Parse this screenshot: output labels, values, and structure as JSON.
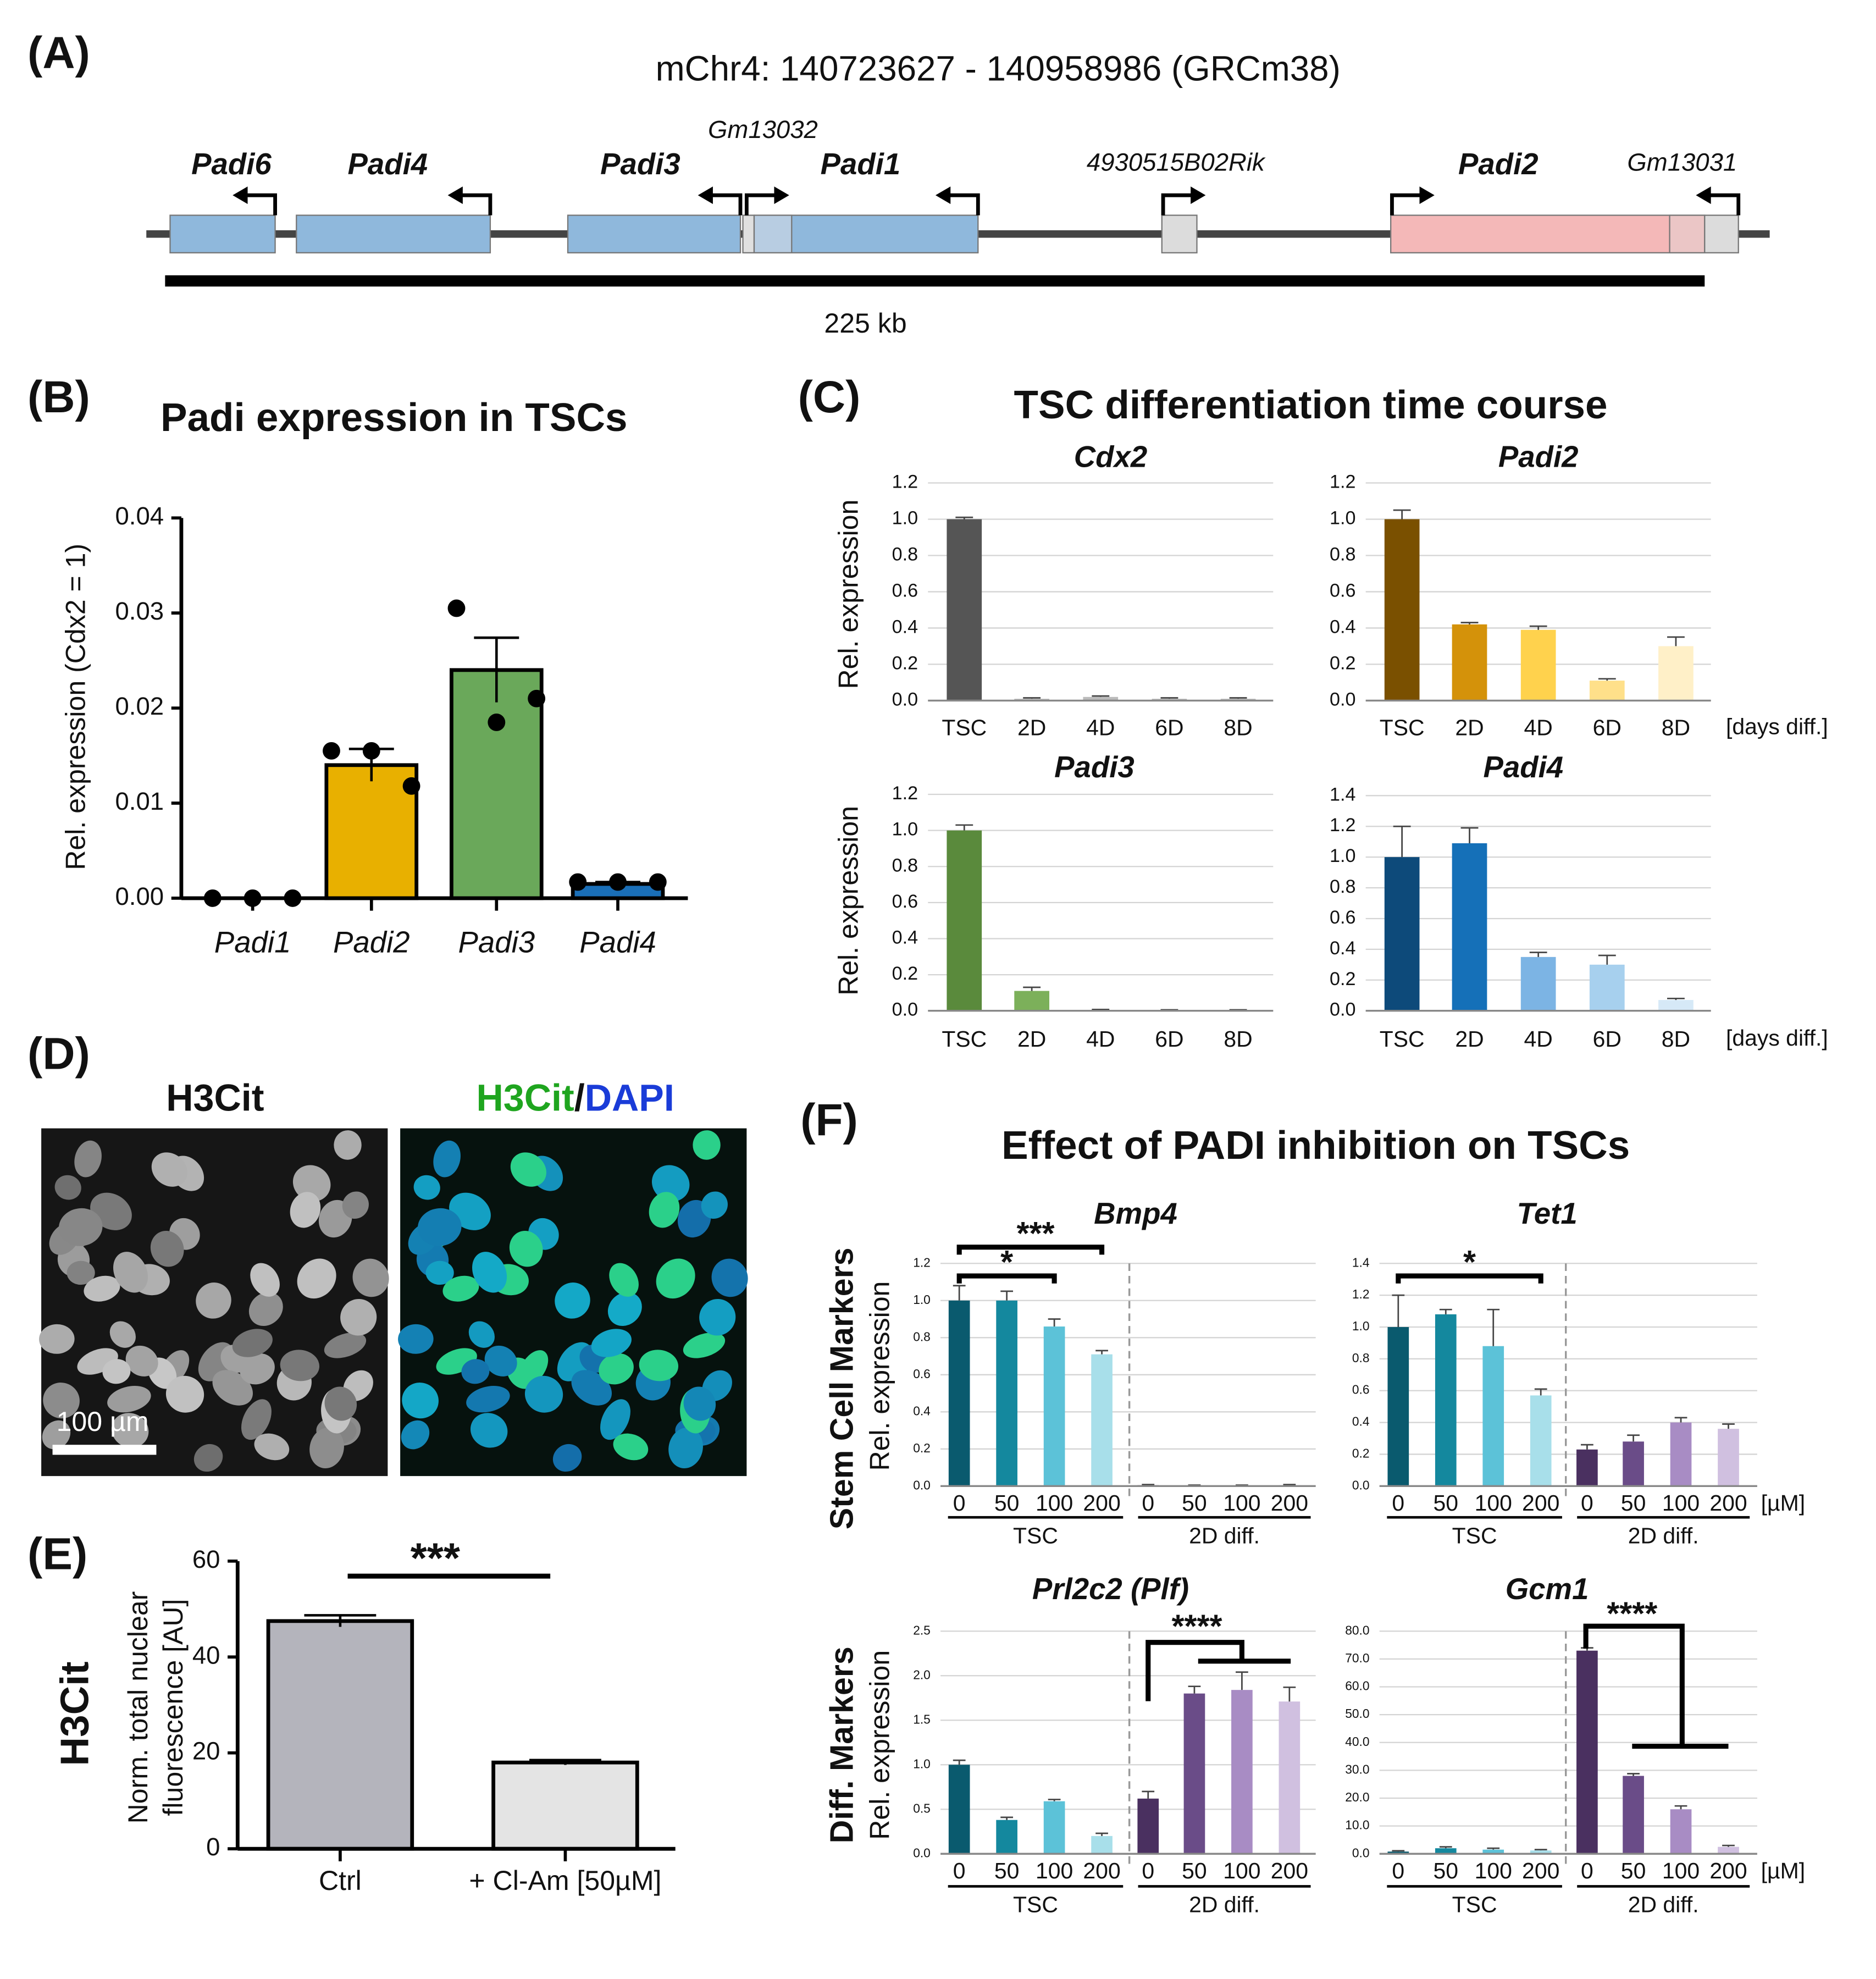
{
  "panel_labels": [
    "(A)",
    "(B)",
    "(C)",
    "(D)",
    "(E)",
    "(F)"
  ],
  "gene_map": {
    "title": "mChr4: 140723627 - 140958986 (GRCm38)",
    "genes": [
      "Padi6",
      "Padi4",
      "Padi3",
      "Gm13032",
      "Padi1",
      "4930515B02Rik",
      "Padi2",
      "Gm13031"
    ],
    "scale_label": "225 kb"
  },
  "panel_c_title": "TSC differentiation time course",
  "panel_f_title": "Effect of PADI inhibition on TSCs",
  "panel_f_row_labels": [
    "Stem Cell Markers",
    "Diff. Markers"
  ],
  "microscopy": {
    "left_title": "H3Cit",
    "right_title": [
      "H3Cit",
      "/",
      "DAPI"
    ],
    "scale_bar": "100 µm"
  },
  "chart_data": [
    {
      "type": "bar",
      "title": "Padi expression in TSCs",
      "y_label": "Rel. expression (Cdx2 = 1)",
      "categories": [
        "Padi1",
        "Padi2",
        "Padi3",
        "Padi4"
      ],
      "values": [
        0,
        0.014,
        0.024,
        0.0015
      ],
      "errors": [
        0,
        0.0017,
        0.0034,
        0.0002
      ],
      "points": [
        [
          0,
          0,
          0
        ],
        [
          0.0155,
          0.0155,
          0.0118
        ],
        [
          0.0305,
          0.0185,
          0.021
        ],
        [
          0.0017,
          0.0017,
          0.0017
        ]
      ],
      "colors": [
        "#ffffff",
        "#e8b000",
        "#6aa85a",
        "#1a6fb8"
      ],
      "ylim": [
        0,
        0.04
      ],
      "yticks": [
        {
          "value": 0,
          "label": "0.00"
        },
        0.01,
        0.02,
        0.03,
        0.04
      ],
      "grid": false
    },
    {
      "type": "bar",
      "title": "Cdx2",
      "y_label": "Rel. expression",
      "categories": [
        "TSC",
        "2D",
        "4D",
        "6D",
        "8D"
      ],
      "values": [
        1.0,
        0.01,
        0.02,
        0.01,
        0.01
      ],
      "errors": [
        0.01,
        0.005,
        0.005,
        0.005,
        0.005
      ],
      "colors": [
        "#555555",
        "#bbbbbb",
        "#bbbbbb",
        "#bbbbbb",
        "#bbbbbb"
      ],
      "ylim": [
        0,
        1.2
      ],
      "yticks": [
        {
          "value": 0,
          "label": "0.0"
        },
        0.2,
        0.4,
        0.6,
        0.8,
        {
          "value": 1,
          "label": "1.0"
        },
        1.2
      ],
      "grid": true
    },
    {
      "type": "bar",
      "title": "Padi2",
      "x_unit": "[days diff.]",
      "categories": [
        "TSC",
        "2D",
        "4D",
        "6D",
        "8D"
      ],
      "values": [
        1.0,
        0.42,
        0.39,
        0.11,
        0.3
      ],
      "errors": [
        0.05,
        0.01,
        0.02,
        0.01,
        0.05
      ],
      "colors": [
        "#7a5000",
        "#d4920a",
        "#ffd24d",
        "#ffe08a",
        "#fff0c8"
      ],
      "ylim": [
        0,
        1.2
      ],
      "yticks": [
        {
          "value": 0,
          "label": "0.0"
        },
        0.2,
        0.4,
        0.6,
        0.8,
        {
          "value": 1,
          "label": "1.0"
        },
        1.2
      ],
      "grid": true
    },
    {
      "type": "bar",
      "title": "Padi3",
      "y_label": "Rel. expression",
      "categories": [
        "TSC",
        "2D",
        "4D",
        "6D",
        "8D"
      ],
      "values": [
        1.0,
        0.11,
        0.005,
        0.003,
        0.003
      ],
      "errors": [
        0.03,
        0.02,
        0.002,
        0.002,
        0.002
      ],
      "colors": [
        "#5a8a3c",
        "#7cb05a",
        "#a6cf8a",
        "#c6e2b2",
        "#e2f0d8"
      ],
      "ylim": [
        0,
        1.2
      ],
      "yticks": [
        {
          "value": 0,
          "label": "0.0"
        },
        0.2,
        0.4,
        0.6,
        0.8,
        {
          "value": 1,
          "label": "1.0"
        },
        1.2
      ],
      "grid": true
    },
    {
      "type": "bar",
      "title": "Padi4",
      "x_unit": "[days diff.]",
      "categories": [
        "TSC",
        "2D",
        "4D",
        "6D",
        "8D"
      ],
      "values": [
        1.0,
        1.09,
        0.35,
        0.3,
        0.07
      ],
      "errors": [
        0.2,
        0.1,
        0.03,
        0.06,
        0.01
      ],
      "colors": [
        "#0d4a7a",
        "#1570b8",
        "#7cb4e4",
        "#a7d0ee",
        "#d6e9f7"
      ],
      "ylim": [
        0,
        1.4
      ],
      "yticks": [
        {
          "value": 0,
          "label": "0.0"
        },
        0.2,
        0.4,
        0.6,
        0.8,
        {
          "value": 1,
          "label": "1.0"
        },
        1.2,
        1.4
      ],
      "grid": true
    },
    {
      "type": "bar",
      "row_label": "H3Cit",
      "y_label": [
        "Norm. total nuclear",
        "fluorescence [AU]"
      ],
      "categories": [
        "Ctrl",
        "+ Cl-Am [50µM]"
      ],
      "values": [
        47.5,
        18
      ],
      "errors": [
        1.2,
        0.5
      ],
      "colors": [
        "#b4b4bc",
        "#e4e4e4"
      ],
      "ylim": [
        0,
        60
      ],
      "yticks": [
        0,
        20,
        40,
        60
      ],
      "grid": false,
      "annotations": [
        "***"
      ]
    },
    {
      "type": "bar",
      "title": "Bmp4",
      "y_label": "Rel. expression",
      "categories": [
        "0",
        "50",
        "100",
        "200",
        "0",
        "50",
        "100",
        "200"
      ],
      "groups": [
        "TSC",
        "2D diff."
      ],
      "values": [
        1.0,
        1.0,
        0.86,
        0.71,
        0.005,
        0.003,
        0.003,
        0.005
      ],
      "errors": [
        0.08,
        0.05,
        0.04,
        0.02,
        0.003,
        0.002,
        0.002,
        0.003
      ],
      "colors": [
        "#0a5a6e",
        "#14889e",
        "#5cc2d8",
        "#a8dfea",
        "#4a3060",
        "#6a4c88",
        "#a88cc4",
        "#d0c0e0"
      ],
      "ylim": [
        0,
        1.2
      ],
      "yticks": [
        {
          "value": 0,
          "label": "0.0"
        },
        0.2,
        0.4,
        0.6,
        0.8,
        {
          "value": 1,
          "label": "1.0"
        },
        1.2
      ],
      "grid": true,
      "annotations": [
        "***",
        "*"
      ]
    },
    {
      "type": "bar",
      "title": "Tet1",
      "x_unit": "[µM]",
      "categories": [
        "0",
        "50",
        "100",
        "200",
        "0",
        "50",
        "100",
        "200"
      ],
      "groups": [
        "TSC",
        "2D diff."
      ],
      "values": [
        1.0,
        1.08,
        0.88,
        0.57,
        0.23,
        0.28,
        0.4,
        0.36
      ],
      "errors": [
        0.2,
        0.03,
        0.23,
        0.04,
        0.03,
        0.04,
        0.03,
        0.03
      ],
      "colors": [
        "#0a5a6e",
        "#14889e",
        "#5cc2d8",
        "#a8dfea",
        "#4a3060",
        "#6a4c88",
        "#a88cc4",
        "#d0c0e0"
      ],
      "ylim": [
        0,
        1.4
      ],
      "yticks": [
        {
          "value": 0,
          "label": "0.0"
        },
        0.2,
        0.4,
        0.6,
        0.8,
        {
          "value": 1,
          "label": "1.0"
        },
        1.2,
        1.4
      ],
      "grid": true,
      "annotations": [
        "*"
      ]
    },
    {
      "type": "bar",
      "title": "Prl2c2 (Plf)",
      "y_label": "Rel. expression",
      "categories": [
        "0",
        "50",
        "100",
        "200",
        "0",
        "50",
        "100",
        "200"
      ],
      "groups": [
        "TSC",
        "2D diff."
      ],
      "values": [
        1.0,
        0.38,
        0.59,
        0.2,
        0.62,
        1.8,
        1.84,
        1.71
      ],
      "errors": [
        0.05,
        0.03,
        0.02,
        0.03,
        0.08,
        0.08,
        0.2,
        0.16
      ],
      "colors": [
        "#0a5a6e",
        "#14889e",
        "#5cc2d8",
        "#a8dfea",
        "#4a3060",
        "#6a4c88",
        "#a88cc4",
        "#d0c0e0"
      ],
      "ylim": [
        0,
        2.5
      ],
      "yticks": [
        {
          "value": 0,
          "label": "0.0"
        },
        0.5,
        {
          "value": 1,
          "label": "1.0"
        },
        1.5,
        {
          "value": 2,
          "label": "2.0"
        },
        2.5
      ],
      "grid": true,
      "annotations": [
        "****"
      ]
    },
    {
      "type": "bar",
      "title": "Gcm1",
      "x_unit": "[µM]",
      "categories": [
        "0",
        "50",
        "100",
        "200",
        "0",
        "50",
        "100",
        "200"
      ],
      "groups": [
        "TSC",
        "2D diff."
      ],
      "values": [
        0.8,
        2.0,
        1.5,
        1.2,
        73,
        28,
        16,
        2.5
      ],
      "errors": [
        0.3,
        0.5,
        0.5,
        0.3,
        1,
        0.8,
        1.2,
        0.5
      ],
      "colors": [
        "#0a5a6e",
        "#14889e",
        "#5cc2d8",
        "#a8dfea",
        "#4a3060",
        "#6a4c88",
        "#a88cc4",
        "#d0c0e0"
      ],
      "ylim": [
        0,
        80
      ],
      "yticks": [
        {
          "value": 0,
          "label": "0.0"
        },
        {
          "value": 10,
          "label": "10.0"
        },
        {
          "value": 20,
          "label": "20.0"
        },
        {
          "value": 30,
          "label": "30.0"
        },
        {
          "value": 40,
          "label": "40.0"
        },
        {
          "value": 50,
          "label": "50.0"
        },
        {
          "value": 60,
          "label": "60.0"
        },
        {
          "value": 70,
          "label": "70.0"
        },
        {
          "value": 80,
          "label": "80.0"
        }
      ],
      "grid": true,
      "annotations": [
        "****"
      ]
    }
  ]
}
